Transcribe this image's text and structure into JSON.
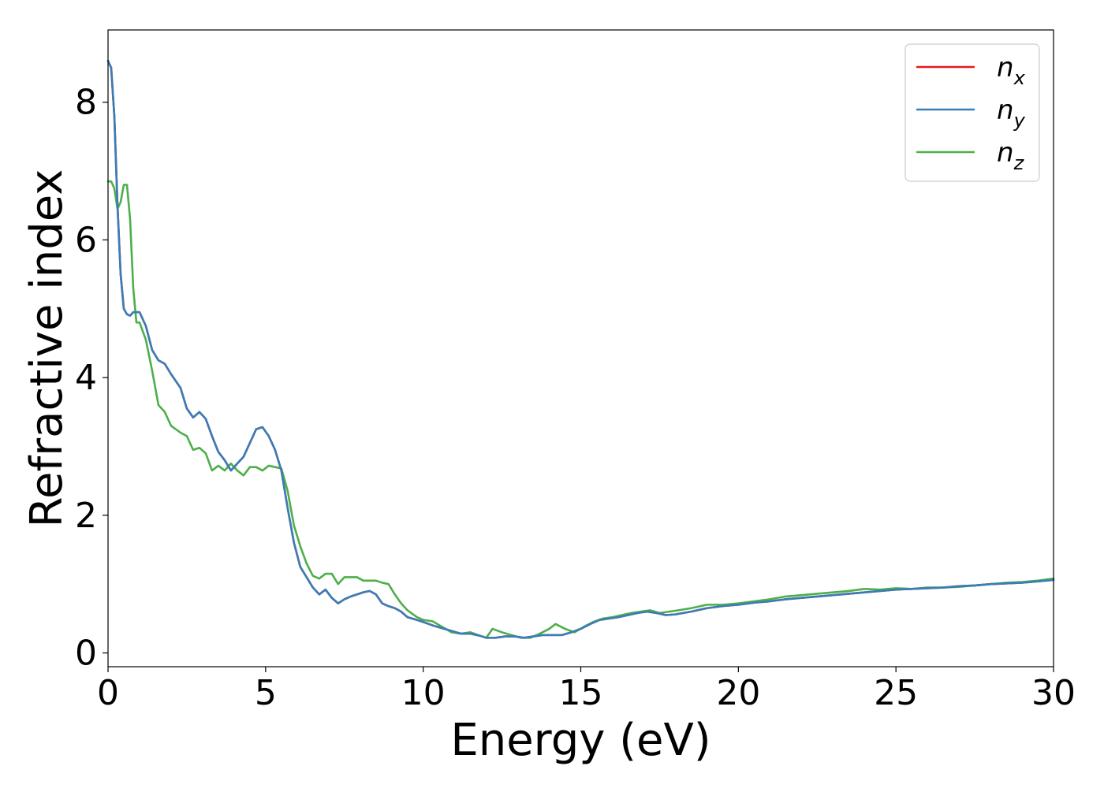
{
  "chart_data": {
    "type": "line",
    "title": "",
    "xlabel": "Energy (eV)",
    "ylabel": "Refractive index",
    "xlim": [
      0,
      30
    ],
    "ylim": [
      -0.2,
      9.05
    ],
    "xticks": [
      0,
      5,
      10,
      15,
      20,
      25,
      30
    ],
    "yticks": [
      0,
      2,
      4,
      6,
      8
    ],
    "grid": false,
    "legend_position": "top-right",
    "series": [
      {
        "name": "x",
        "legend_base": "n",
        "legend_sub": "x",
        "color": "#e41a1c",
        "x": [
          0,
          0.1,
          0.2,
          0.3,
          0.4,
          0.5,
          0.6,
          0.7,
          0.8,
          1.0,
          1.2,
          1.4,
          1.6,
          1.8,
          2.0,
          2.3,
          2.5,
          2.7,
          2.9,
          3.1,
          3.3,
          3.5,
          3.7,
          3.9,
          4.1,
          4.3,
          4.5,
          4.7,
          4.9,
          5.1,
          5.3,
          5.5,
          5.7,
          5.9,
          6.1,
          6.3,
          6.5,
          6.7,
          6.9,
          7.1,
          7.3,
          7.5,
          7.7,
          7.9,
          8.1,
          8.3,
          8.5,
          8.7,
          8.9,
          9.1,
          9.3,
          9.5,
          9.8,
          10.0,
          10.3,
          10.6,
          10.9,
          11.2,
          11.5,
          11.8,
          12.0,
          12.3,
          12.6,
          12.9,
          13.2,
          13.5,
          13.8,
          14.1,
          14.4,
          14.7,
          15.0,
          15.3,
          15.6,
          15.9,
          16.2,
          16.5,
          16.8,
          17.1,
          17.4,
          17.7,
          18.0,
          18.5,
          19.0,
          19.5,
          20.0,
          20.5,
          21.0,
          21.5,
          22.0,
          22.5,
          23.0,
          23.5,
          24.0,
          24.5,
          25.0,
          25.5,
          26.0,
          26.5,
          27.0,
          27.5,
          28.0,
          28.5,
          29.0,
          29.5,
          30.0
        ],
        "y": [
          8.6,
          8.5,
          7.8,
          6.5,
          5.5,
          5.0,
          4.92,
          4.9,
          4.95,
          4.95,
          4.75,
          4.4,
          4.25,
          4.2,
          4.05,
          3.85,
          3.55,
          3.42,
          3.5,
          3.4,
          3.15,
          2.92,
          2.8,
          2.65,
          2.75,
          2.85,
          3.05,
          3.25,
          3.28,
          3.15,
          2.95,
          2.65,
          2.1,
          1.6,
          1.25,
          1.1,
          0.95,
          0.85,
          0.92,
          0.8,
          0.72,
          0.78,
          0.82,
          0.85,
          0.88,
          0.9,
          0.85,
          0.72,
          0.68,
          0.65,
          0.6,
          0.52,
          0.48,
          0.45,
          0.4,
          0.36,
          0.32,
          0.28,
          0.28,
          0.25,
          0.22,
          0.22,
          0.24,
          0.24,
          0.22,
          0.24,
          0.26,
          0.26,
          0.26,
          0.3,
          0.35,
          0.42,
          0.48,
          0.5,
          0.52,
          0.55,
          0.58,
          0.6,
          0.58,
          0.55,
          0.56,
          0.6,
          0.65,
          0.68,
          0.7,
          0.73,
          0.75,
          0.78,
          0.8,
          0.82,
          0.84,
          0.86,
          0.88,
          0.9,
          0.92,
          0.93,
          0.94,
          0.95,
          0.97,
          0.98,
          1.0,
          1.01,
          1.02,
          1.04,
          1.06
        ]
      },
      {
        "name": "y",
        "legend_base": "n",
        "legend_sub": "y",
        "color": "#377eb8",
        "x": [
          0,
          0.1,
          0.2,
          0.3,
          0.4,
          0.5,
          0.6,
          0.7,
          0.8,
          1.0,
          1.2,
          1.4,
          1.6,
          1.8,
          2.0,
          2.3,
          2.5,
          2.7,
          2.9,
          3.1,
          3.3,
          3.5,
          3.7,
          3.9,
          4.1,
          4.3,
          4.5,
          4.7,
          4.9,
          5.1,
          5.3,
          5.5,
          5.7,
          5.9,
          6.1,
          6.3,
          6.5,
          6.7,
          6.9,
          7.1,
          7.3,
          7.5,
          7.7,
          7.9,
          8.1,
          8.3,
          8.5,
          8.7,
          8.9,
          9.1,
          9.3,
          9.5,
          9.8,
          10.0,
          10.3,
          10.6,
          10.9,
          11.2,
          11.5,
          11.8,
          12.0,
          12.3,
          12.6,
          12.9,
          13.2,
          13.5,
          13.8,
          14.1,
          14.4,
          14.7,
          15.0,
          15.3,
          15.6,
          15.9,
          16.2,
          16.5,
          16.8,
          17.1,
          17.4,
          17.7,
          18.0,
          18.5,
          19.0,
          19.5,
          20.0,
          20.5,
          21.0,
          21.5,
          22.0,
          22.5,
          23.0,
          23.5,
          24.0,
          24.5,
          25.0,
          25.5,
          26.0,
          26.5,
          27.0,
          27.5,
          28.0,
          28.5,
          29.0,
          29.5,
          30.0
        ],
        "y": [
          8.6,
          8.5,
          7.8,
          6.5,
          5.5,
          5.0,
          4.92,
          4.9,
          4.95,
          4.95,
          4.75,
          4.4,
          4.25,
          4.2,
          4.05,
          3.85,
          3.55,
          3.42,
          3.5,
          3.4,
          3.15,
          2.92,
          2.8,
          2.65,
          2.75,
          2.85,
          3.05,
          3.25,
          3.28,
          3.15,
          2.95,
          2.65,
          2.1,
          1.6,
          1.25,
          1.1,
          0.95,
          0.85,
          0.92,
          0.8,
          0.72,
          0.78,
          0.82,
          0.85,
          0.88,
          0.9,
          0.85,
          0.72,
          0.68,
          0.65,
          0.6,
          0.52,
          0.48,
          0.45,
          0.4,
          0.36,
          0.32,
          0.28,
          0.28,
          0.25,
          0.22,
          0.22,
          0.24,
          0.24,
          0.22,
          0.24,
          0.26,
          0.26,
          0.26,
          0.3,
          0.35,
          0.42,
          0.48,
          0.5,
          0.52,
          0.55,
          0.58,
          0.6,
          0.58,
          0.55,
          0.56,
          0.6,
          0.65,
          0.68,
          0.7,
          0.73,
          0.75,
          0.78,
          0.8,
          0.82,
          0.84,
          0.86,
          0.88,
          0.9,
          0.92,
          0.93,
          0.94,
          0.95,
          0.97,
          0.98,
          1.0,
          1.01,
          1.02,
          1.04,
          1.06
        ]
      },
      {
        "name": "z",
        "legend_base": "n",
        "legend_sub": "z",
        "color": "#4daf4a",
        "x": [
          0,
          0.1,
          0.2,
          0.3,
          0.4,
          0.5,
          0.6,
          0.7,
          0.8,
          0.9,
          1.0,
          1.2,
          1.4,
          1.6,
          1.8,
          2.0,
          2.3,
          2.5,
          2.7,
          2.9,
          3.1,
          3.3,
          3.5,
          3.7,
          3.9,
          4.1,
          4.3,
          4.5,
          4.7,
          4.9,
          5.1,
          5.3,
          5.5,
          5.7,
          5.9,
          6.1,
          6.3,
          6.5,
          6.7,
          6.9,
          7.1,
          7.3,
          7.5,
          7.7,
          7.9,
          8.1,
          8.3,
          8.5,
          8.7,
          8.9,
          9.1,
          9.3,
          9.5,
          9.8,
          10.0,
          10.3,
          10.6,
          10.9,
          11.2,
          11.5,
          11.8,
          12.0,
          12.2,
          12.5,
          12.8,
          13.1,
          13.4,
          13.7,
          14.0,
          14.2,
          14.5,
          14.8,
          15.1,
          15.4,
          15.7,
          16.0,
          16.3,
          16.6,
          16.9,
          17.2,
          17.5,
          17.8,
          18.1,
          18.5,
          19.0,
          19.5,
          20.0,
          20.5,
          21.0,
          21.5,
          22.0,
          22.5,
          23.0,
          23.5,
          24.0,
          24.5,
          25.0,
          25.5,
          26.0,
          26.5,
          27.0,
          27.5,
          28.0,
          28.5,
          29.0,
          29.5,
          30.0
        ],
        "y": [
          6.85,
          6.85,
          6.75,
          6.45,
          6.55,
          6.8,
          6.8,
          6.3,
          5.3,
          4.8,
          4.8,
          4.55,
          4.1,
          3.6,
          3.5,
          3.3,
          3.2,
          3.15,
          2.95,
          2.98,
          2.9,
          2.65,
          2.72,
          2.65,
          2.75,
          2.65,
          2.58,
          2.7,
          2.7,
          2.65,
          2.72,
          2.7,
          2.68,
          2.35,
          1.85,
          1.55,
          1.3,
          1.12,
          1.08,
          1.15,
          1.15,
          1.0,
          1.1,
          1.1,
          1.1,
          1.05,
          1.05,
          1.05,
          1.02,
          1.0,
          0.85,
          0.72,
          0.62,
          0.52,
          0.48,
          0.46,
          0.38,
          0.3,
          0.28,
          0.3,
          0.25,
          0.22,
          0.35,
          0.3,
          0.26,
          0.22,
          0.22,
          0.28,
          0.35,
          0.42,
          0.35,
          0.3,
          0.38,
          0.45,
          0.5,
          0.52,
          0.55,
          0.58,
          0.6,
          0.62,
          0.58,
          0.6,
          0.62,
          0.65,
          0.7,
          0.7,
          0.72,
          0.75,
          0.78,
          0.82,
          0.84,
          0.86,
          0.88,
          0.9,
          0.93,
          0.92,
          0.94,
          0.93,
          0.95,
          0.95,
          0.96,
          0.98,
          1.0,
          1.02,
          1.03,
          1.05,
          1.08
        ]
      }
    ]
  }
}
